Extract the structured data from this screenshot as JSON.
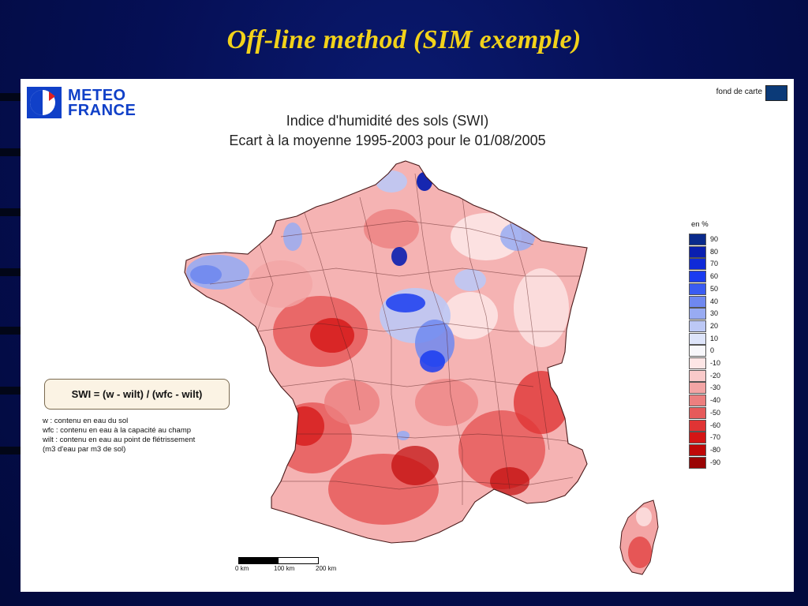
{
  "slide": {
    "title": "Off-line method (SIM exemple)"
  },
  "logo": {
    "line1": "METEO",
    "line2": "FRANCE"
  },
  "map": {
    "title": "Indice d'humidité des sols (SWI)",
    "subtitle": "Ecart à la moyenne 1995-2003 pour le 01/08/2005",
    "fond_de_carte": "fond de carte",
    "formula": "SWI = (w - wilt) / (wfc - wilt)",
    "definitions": [
      "w : contenu en eau du sol",
      "wfc : contenu en eau à la capacité au champ",
      "wilt : contenu en eau au point de flétrissement",
      "(m3 d'eau par m3 de sol)"
    ],
    "legend": {
      "unit": "en %",
      "entries": [
        {
          "label": "90",
          "color": "#0a2a8c"
        },
        {
          "label": "80",
          "color": "#0a1fb0"
        },
        {
          "label": "70",
          "color": "#0f2ad8"
        },
        {
          "label": "60",
          "color": "#1a3cf0"
        },
        {
          "label": "50",
          "color": "#3a5cf2"
        },
        {
          "label": "40",
          "color": "#6f88f0"
        },
        {
          "label": "30",
          "color": "#98abf2"
        },
        {
          "label": "20",
          "color": "#bcc8f5"
        },
        {
          "label": "10",
          "color": "#dde4fa"
        },
        {
          "label": "0",
          "color": "#f7f7fb"
        },
        {
          "label": "-10",
          "color": "#fde6e6"
        },
        {
          "label": "-20",
          "color": "#f9caca"
        },
        {
          "label": "-30",
          "color": "#f3a5a5"
        },
        {
          "label": "-40",
          "color": "#ec7f7f"
        },
        {
          "label": "-50",
          "color": "#e65a5a"
        },
        {
          "label": "-60",
          "color": "#e03434"
        },
        {
          "label": "-70",
          "color": "#d41515"
        },
        {
          "label": "-80",
          "color": "#c00808"
        },
        {
          "label": "-90",
          "color": "#9a0505"
        }
      ]
    },
    "scale": {
      "labels": [
        "0 km",
        "100 km",
        "200 km"
      ]
    }
  }
}
